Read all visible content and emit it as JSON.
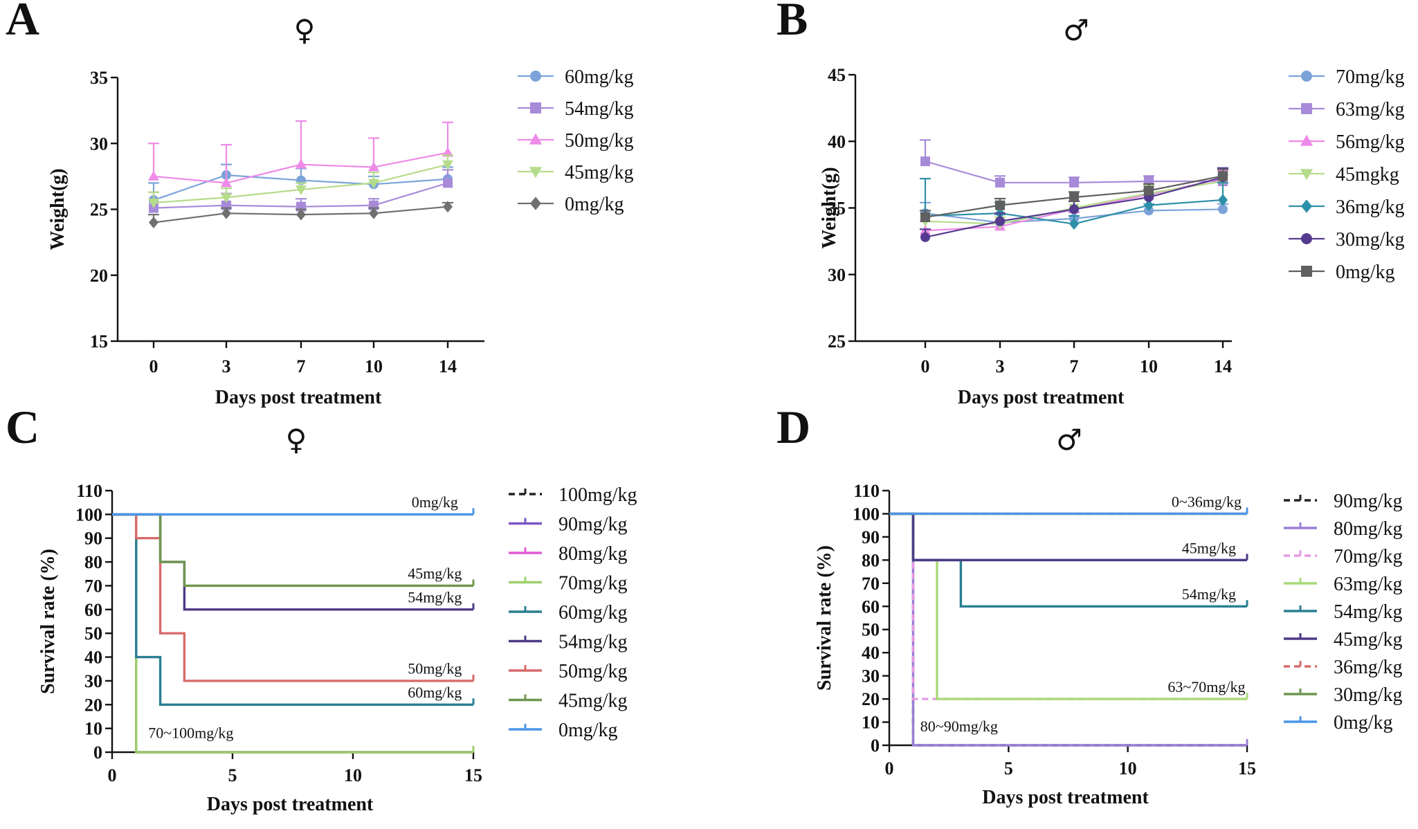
{
  "chart_data": [
    {
      "panel": "A",
      "symbol": "♀",
      "type": "line",
      "xlabel": "Days post treatment",
      "ylabel": "Weight(g)",
      "categories": [
        "0",
        "3",
        "7",
        "10",
        "14"
      ],
      "ylim": [
        15,
        35
      ],
      "yticks": [
        15,
        20,
        25,
        30,
        35
      ],
      "series": [
        {
          "name": "60mg/kg",
          "color": "#7BA3D9",
          "marker": "circle",
          "values": [
            25.7,
            27.6,
            27.2,
            26.9,
            27.3
          ],
          "err": [
            1.3,
            0.8,
            0.9,
            0.6,
            0.9
          ]
        },
        {
          "name": "54mg/kg",
          "color": "#A78BD9",
          "marker": "square",
          "values": [
            25.1,
            25.3,
            25.2,
            25.3,
            27.0
          ],
          "err": [
            1.2,
            0.9,
            0.6,
            0.5,
            1.0
          ]
        },
        {
          "name": "50mg/kg",
          "color": "#EE8AE8",
          "marker": "triangle",
          "values": [
            27.5,
            27.0,
            28.4,
            28.2,
            29.3
          ],
          "err": [
            2.5,
            2.9,
            3.3,
            2.2,
            2.3
          ]
        },
        {
          "name": "45mg/kg",
          "color": "#B5DC8A",
          "marker": "triangle-down",
          "values": [
            25.5,
            25.9,
            26.5,
            27.0,
            28.4
          ],
          "err": [
            0.8,
            0.7,
            0.5,
            0.8,
            0.7
          ]
        },
        {
          "name": "0mg/kg",
          "color": "#707070",
          "marker": "diamond",
          "values": [
            24.0,
            24.7,
            24.6,
            24.7,
            25.2
          ],
          "err": [
            0.6,
            0.4,
            0.4,
            0.4,
            0.3
          ]
        }
      ]
    },
    {
      "panel": "B",
      "symbol": "♂",
      "type": "line",
      "xlabel": "Days post treatment",
      "ylabel": "Weight(g)",
      "categories": [
        "0",
        "3",
        "7",
        "10",
        "14"
      ],
      "ylim": [
        25,
        45
      ],
      "yticks": [
        25,
        30,
        35,
        40,
        45
      ],
      "series": [
        {
          "name": "70mg/kg",
          "color": "#7BA3D9",
          "marker": "circle",
          "values": [
            34.6,
            33.9,
            34.2,
            34.8,
            34.9
          ],
          "err": [
            0.8,
            0.6,
            0.5,
            0.5,
            0.4
          ]
        },
        {
          "name": "63mg/kg",
          "color": "#A78BD9",
          "marker": "square",
          "values": [
            38.5,
            36.9,
            36.9,
            37.0,
            37.0
          ],
          "err": [
            1.6,
            0.5,
            0.4,
            0.4,
            0.5
          ]
        },
        {
          "name": "56mg/kg",
          "color": "#EE8AE8",
          "marker": "triangle",
          "values": [
            33.3,
            33.6,
            34.9,
            36.0,
            37.2
          ],
          "err": [
            0.7,
            0.5,
            0.6,
            0.6,
            0.6
          ]
        },
        {
          "name": "45mgkg",
          "color": "#B5DC8A",
          "marker": "triangle-down",
          "values": [
            34.0,
            33.8,
            35.0,
            36.1,
            37.0
          ],
          "err": [
            0.6,
            0.5,
            0.5,
            0.6,
            0.7
          ]
        },
        {
          "name": "36mg/kg",
          "color": "#2E8FA8",
          "marker": "diamond",
          "values": [
            34.4,
            34.6,
            33.8,
            35.2,
            35.6
          ],
          "err": [
            2.8,
            0.8,
            0.6,
            0.8,
            1.3
          ]
        },
        {
          "name": "30mg/kg",
          "color": "#553B8F",
          "marker": "circle",
          "values": [
            32.8,
            34.0,
            34.9,
            35.8,
            37.3
          ],
          "err": [
            0.6,
            0.6,
            0.6,
            0.6,
            0.7
          ]
        },
        {
          "name": "0mg/kg",
          "color": "#606060",
          "marker": "square",
          "values": [
            34.3,
            35.2,
            35.8,
            36.3,
            37.4
          ],
          "err": [
            0.5,
            0.5,
            0.4,
            0.5,
            0.5
          ]
        }
      ]
    },
    {
      "panel": "C",
      "symbol": "♀",
      "type": "line",
      "subtype": "survival-step",
      "xlabel": "Days post treatment",
      "ylabel": "Survival rate (%)",
      "xlim": [
        0,
        15
      ],
      "xticks": [
        0,
        5,
        10,
        15
      ],
      "ylim": [
        0,
        110
      ],
      "yticks": [
        0,
        10,
        20,
        30,
        40,
        50,
        60,
        70,
        80,
        90,
        100,
        110
      ],
      "series": [
        {
          "name": "100mg/kg",
          "color": "#222222",
          "dashed": true,
          "x": [
            0,
            1,
            1,
            15
          ],
          "y": [
            100,
            100,
            0,
            0
          ]
        },
        {
          "name": "90mg/kg",
          "color": "#7B56C4",
          "dashed": false,
          "x": [
            0,
            1,
            1,
            15
          ],
          "y": [
            100,
            100,
            0,
            0
          ]
        },
        {
          "name": "80mg/kg",
          "color": "#E05BD6",
          "dashed": false,
          "x": [
            0,
            1,
            1,
            15
          ],
          "y": [
            100,
            100,
            0,
            0
          ]
        },
        {
          "name": "70mg/kg",
          "color": "#9BD06A",
          "dashed": false,
          "x": [
            0,
            1,
            1,
            15
          ],
          "y": [
            100,
            100,
            0,
            0
          ]
        },
        {
          "name": "60mg/kg",
          "color": "#2A7F92",
          "dashed": false,
          "x": [
            0,
            1,
            1,
            2,
            2,
            15
          ],
          "y": [
            100,
            100,
            40,
            40,
            20,
            20
          ]
        },
        {
          "name": "54mg/kg",
          "color": "#4E3A86",
          "dashed": false,
          "x": [
            0,
            2,
            2,
            3,
            3,
            15
          ],
          "y": [
            100,
            100,
            80,
            80,
            60,
            60
          ]
        },
        {
          "name": "50mg/kg",
          "color": "#D86B6B",
          "dashed": false,
          "x": [
            0,
            1,
            1,
            2,
            2,
            3,
            3,
            15
          ],
          "y": [
            100,
            100,
            90,
            90,
            50,
            50,
            30,
            30
          ]
        },
        {
          "name": "45mg/kg",
          "color": "#6E9650",
          "dashed": false,
          "x": [
            0,
            2,
            2,
            3,
            3,
            15
          ],
          "y": [
            100,
            100,
            80,
            80,
            70,
            70
          ]
        },
        {
          "name": "0mg/kg",
          "color": "#4C95E8",
          "dashed": false,
          "x": [
            0,
            15
          ],
          "y": [
            100,
            100
          ]
        }
      ],
      "annotations": [
        {
          "text": "0mg/kg",
          "x": 13.4,
          "y": 103
        },
        {
          "text": "45mg/kg",
          "x": 13.4,
          "y": 73
        },
        {
          "text": "54mg/kg",
          "x": 13.4,
          "y": 63
        },
        {
          "text": "50mg/kg",
          "x": 13.4,
          "y": 33
        },
        {
          "text": "60mg/kg",
          "x": 13.4,
          "y": 23
        },
        {
          "text": "70~100mg/kg",
          "x": 1.5,
          "y": 6
        }
      ]
    },
    {
      "panel": "D",
      "symbol": "♂",
      "type": "line",
      "subtype": "survival-step",
      "xlabel": "Days post treatment",
      "ylabel": "Survival rate (%)",
      "xlim": [
        0,
        15
      ],
      "xticks": [
        0,
        5,
        10,
        15
      ],
      "ylim": [
        0,
        110
      ],
      "yticks": [
        0,
        10,
        20,
        30,
        40,
        50,
        60,
        70,
        80,
        90,
        100,
        110
      ],
      "series": [
        {
          "name": "90mg/kg",
          "color": "#222222",
          "dashed": true,
          "x": [
            0,
            1,
            1,
            15
          ],
          "y": [
            100,
            100,
            0,
            0
          ]
        },
        {
          "name": "80mg/kg",
          "color": "#9A7ED6",
          "dashed": false,
          "x": [
            0,
            1,
            1,
            15
          ],
          "y": [
            100,
            100,
            0,
            0
          ]
        },
        {
          "name": "70mg/kg",
          "color": "#E89BE3",
          "dashed": true,
          "x": [
            0,
            1,
            1,
            15
          ],
          "y": [
            100,
            100,
            20,
            20
          ]
        },
        {
          "name": "63mg/kg",
          "color": "#A9D978",
          "dashed": false,
          "x": [
            0,
            1,
            1,
            2,
            2,
            15
          ],
          "y": [
            100,
            100,
            80,
            80,
            20,
            20
          ]
        },
        {
          "name": "54mg/kg",
          "color": "#2A7F92",
          "dashed": false,
          "x": [
            0,
            1,
            1,
            3,
            3,
            15
          ],
          "y": [
            100,
            100,
            80,
            80,
            60,
            60
          ]
        },
        {
          "name": "45mg/kg",
          "color": "#4E3A86",
          "dashed": false,
          "x": [
            0,
            1,
            1,
            15
          ],
          "y": [
            100,
            100,
            80,
            80
          ]
        },
        {
          "name": "36mg/kg",
          "color": "#D86B6B",
          "dashed": true,
          "x": [
            0,
            15
          ],
          "y": [
            100,
            100
          ]
        },
        {
          "name": "30mg/kg",
          "color": "#6E9650",
          "dashed": false,
          "x": [
            0,
            15
          ],
          "y": [
            100,
            100
          ]
        },
        {
          "name": "0mg/kg",
          "color": "#4C95E8",
          "dashed": false,
          "x": [
            0,
            15
          ],
          "y": [
            100,
            100
          ]
        }
      ],
      "annotations": [
        {
          "text": "0~36mg/kg",
          "x": 13.3,
          "y": 103
        },
        {
          "text": "45mg/kg",
          "x": 13.4,
          "y": 83
        },
        {
          "text": "54mg/kg",
          "x": 13.4,
          "y": 63
        },
        {
          "text": "63~70mg/kg",
          "x": 13.3,
          "y": 23
        },
        {
          "text": "80~90mg/kg",
          "x": 1.3,
          "y": 6
        }
      ]
    }
  ]
}
